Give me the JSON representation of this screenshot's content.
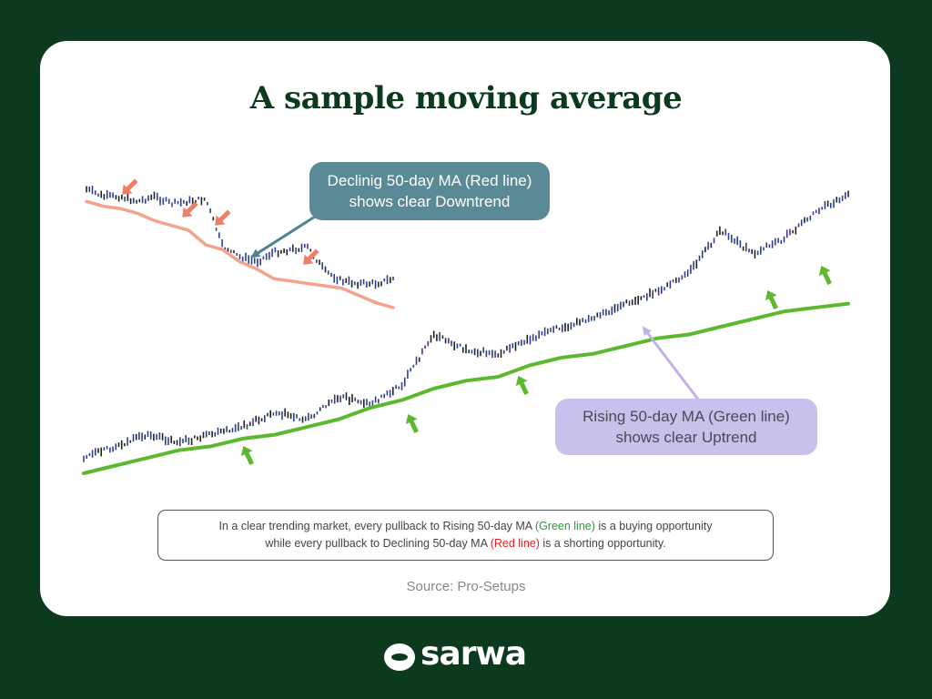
{
  "title": "A sample moving average",
  "callouts": {
    "red_line1": "Declinig 50-day MA (Red line)",
    "red_line2": "shows clear Downtrend",
    "green_line1": "Rising 50-day MA (Green line)",
    "green_line2": "shows clear Uptrend"
  },
  "note": {
    "line1_pre": "In a clear trending market, every pullback to Rising 50-day MA ",
    "line1_green": "(Green line)",
    "line1_post": " is a buying opportunity",
    "line2_pre": "while every pullback to Declining 50-day MA ",
    "line2_red": "(Red line)",
    "line2_post": " is a shorting opportunity."
  },
  "source": "Source: Pro-Setups",
  "brand": "sarwa",
  "colors": {
    "background": "#0b3a1f",
    "red_ma": "#f4a28c",
    "red_arrow": "#ee7e66",
    "green_ma": "#5cb82e",
    "green_arrow": "#5cb82e",
    "candle": "#2e3f8f",
    "red_pointer": "#4e8391",
    "green_pointer": "#bdb3e8"
  },
  "chart_data": [
    {
      "type": "line",
      "series": [
        {
          "values": [
            56,
            54,
            53,
            51,
            48,
            46,
            44,
            38,
            36,
            31,
            28,
            24,
            23,
            22,
            21,
            20,
            17,
            14,
            12
          ]
        },
        {
          "values": [
            61,
            58,
            58,
            56,
            58,
            55,
            56,
            57,
            37,
            33,
            31,
            35,
            36,
            37,
            27,
            23,
            22,
            22,
            24
          ]
        }
      ]
    },
    {
      "type": "line",
      "series": [
        {
          "values": [
            0,
            2,
            4,
            6,
            7,
            9,
            10,
            12,
            14,
            17,
            19,
            22,
            24,
            25,
            28,
            30,
            31,
            33,
            35,
            36,
            38,
            40,
            42,
            43,
            44
          ]
        },
        {
          "values": [
            4,
            7,
            10,
            8,
            10,
            12,
            16,
            14,
            20,
            18,
            23,
            36,
            32,
            31,
            35,
            38,
            40,
            44,
            47,
            52,
            63,
            57,
            61,
            68,
            72
          ]
        }
      ]
    }
  ]
}
